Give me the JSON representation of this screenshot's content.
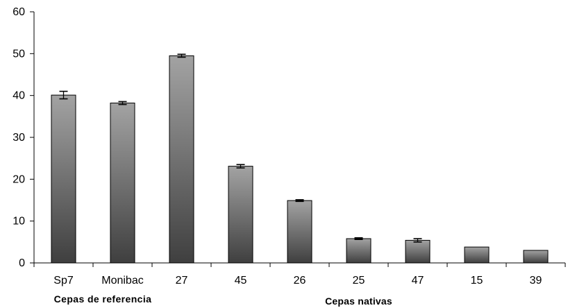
{
  "chart_data": {
    "type": "bar",
    "categories": [
      "Sp7",
      "Monibac",
      "27",
      "45",
      "26",
      "25",
      "47",
      "15",
      "39"
    ],
    "values": [
      40.1,
      38.2,
      49.5,
      23.1,
      14.9,
      5.8,
      5.4,
      3.8,
      3.0
    ],
    "errors": [
      0.9,
      0.35,
      0.35,
      0.4,
      0.2,
      0.2,
      0.4,
      0,
      0
    ],
    "title": "",
    "xlabel": "",
    "ylabel": "",
    "ylim": [
      0,
      60
    ],
    "yticks": [
      0,
      10,
      20,
      30,
      40,
      50,
      60
    ],
    "groups": [
      {
        "label": "Cepas de referencia",
        "from": 0,
        "to": 1
      },
      {
        "label": "Cepas nativas",
        "from": 2,
        "to": 8
      }
    ],
    "grid": false,
    "legend": "none",
    "colors": {
      "bar_top": "#a3a3a3",
      "bar_bottom": "#3f3f3f",
      "bar_stroke": "#000000",
      "axis": "#000000"
    }
  }
}
